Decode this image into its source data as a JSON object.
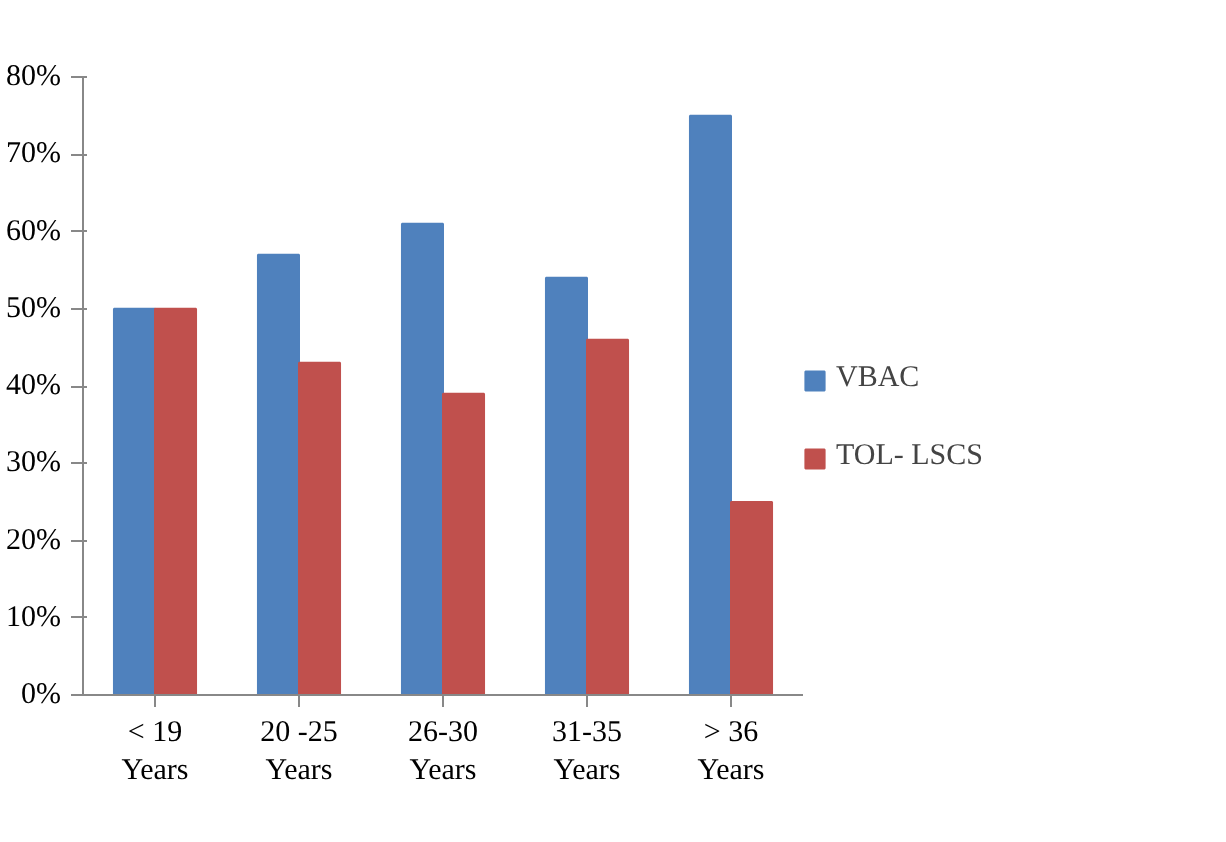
{
  "chart_data": {
    "type": "bar",
    "categories": [
      "< 19\nYears",
      "20 -25\nYears",
      "26-30\nYears",
      "31-35\nYears",
      "> 36\nYears"
    ],
    "series": [
      {
        "name": "VBAC",
        "color": "#4f81bd",
        "values": [
          50,
          57,
          61,
          54,
          75
        ]
      },
      {
        "name": "TOL- LSCS",
        "color": "#c0504d",
        "values": [
          50,
          43,
          39,
          46,
          25
        ]
      }
    ],
    "ylim": [
      0,
      80
    ],
    "yticks": [
      {
        "value": 0,
        "label": "0%"
      },
      {
        "value": 10,
        "label": "10%"
      },
      {
        "value": 20,
        "label": "20%"
      },
      {
        "value": 30,
        "label": "30%"
      },
      {
        "value": 40,
        "label": "40%"
      },
      {
        "value": 50,
        "label": "50%"
      },
      {
        "value": 60,
        "label": "60%"
      },
      {
        "value": 70,
        "label": "70%"
      },
      {
        "value": 80,
        "label": "80%"
      }
    ],
    "grid": false,
    "legend": "right"
  }
}
